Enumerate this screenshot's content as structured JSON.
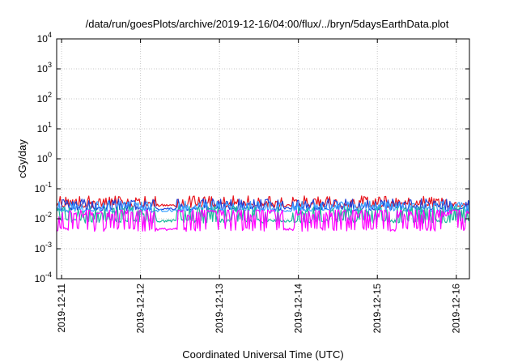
{
  "chart_data": {
    "type": "line",
    "title": "/data/run/goesPlots/archive/2019-12-16/04:00/flux/../bryn/5daysEarthData.plot",
    "xlabel": "Coordinated Universal Time (UTC)",
    "ylabel": "cGy/day",
    "y_scale": "log",
    "ylim": [
      0.0001,
      10000
    ],
    "xlim": [
      "2019-12-10T22:30",
      "2019-12-16T04:00"
    ],
    "x_ticks": [
      {
        "label": "2019-12-11",
        "value": "2019-12-11T00:00"
      },
      {
        "label": "2019-12-12",
        "value": "2019-12-12T00:00"
      },
      {
        "label": "2019-12-13",
        "value": "2019-12-13T00:00"
      },
      {
        "label": "2019-12-14",
        "value": "2019-12-14T00:00"
      },
      {
        "label": "2019-12-15",
        "value": "2019-12-15T00:00"
      },
      {
        "label": "2019-12-16",
        "value": "2019-12-16T00:00"
      }
    ],
    "y_ticks": [
      {
        "base": "10",
        "exp": "-4",
        "value": 0.0001
      },
      {
        "base": "10",
        "exp": "-3",
        "value": 0.001
      },
      {
        "base": "10",
        "exp": "-2",
        "value": 0.01
      },
      {
        "base": "10",
        "exp": "-1",
        "value": 0.1
      },
      {
        "base": "10",
        "exp": "0",
        "value": 1
      },
      {
        "base": "10",
        "exp": "1",
        "value": 10
      },
      {
        "base": "10",
        "exp": "2",
        "value": 100
      },
      {
        "base": "10",
        "exp": "3",
        "value": 1000
      },
      {
        "base": "10",
        "exp": "4",
        "value": 10000
      }
    ],
    "grid": true,
    "colors": {
      "red": "#e8141c",
      "dark_blue": "#1f3fd6",
      "light_blue": "#3aa0ff",
      "teal": "#1ab89a",
      "magenta": "#ff00ff"
    },
    "series": [
      {
        "color": "#e8141c",
        "peak": 0.045,
        "base": 0.028
      },
      {
        "color": "#1f3fd6",
        "peak": 0.036,
        "base": 0.022
      },
      {
        "color": "#3aa0ff",
        "peak": 0.03,
        "base": 0.019
      },
      {
        "color": "#1ab89a",
        "peak": 0.02,
        "base": 0.0085
      },
      {
        "color": "#ff00ff",
        "peak": 0.015,
        "base": 0.0045
      }
    ]
  }
}
